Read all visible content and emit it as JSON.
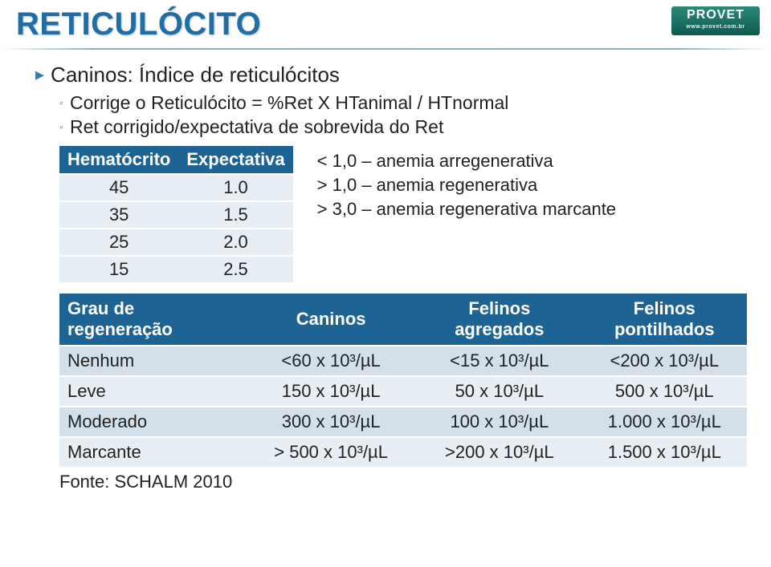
{
  "logo": {
    "name": "PROVET",
    "tagline": "www.provet.com.br"
  },
  "title": "RETICULÓCITO",
  "bullets": {
    "main": "Caninos: Índice de reticulócitos",
    "sub1": "Corrige o Reticulócito = %Ret X HTanimal / HTnormal",
    "sub2": "Ret corrigido/expectativa de sobrevida do Ret"
  },
  "hematocrito": {
    "headers": [
      "Hematócrito",
      "Expectativa"
    ],
    "rows": [
      [
        "45",
        "1.0"
      ],
      [
        "35",
        "1.5"
      ],
      [
        "25",
        "2.0"
      ],
      [
        "15",
        "2.5"
      ]
    ],
    "colors": {
      "header_bg": "#1d6393",
      "header_fg": "#ffffff",
      "row_bg": "#e8eff4"
    }
  },
  "notes": {
    "line1": "< 1,0 – anemia arregenerativa",
    "line2": "> 1,0 – anemia regenerativa",
    "line3": "> 3,0 – anemia regenerativa marcante"
  },
  "grau": {
    "headers": [
      "Grau de regeneração",
      "Caninos",
      "Felinos agregados",
      "Felinos pontilhados"
    ],
    "col_widths": [
      "27%",
      "25%",
      "24%",
      "24%"
    ],
    "rows": [
      [
        "Nenhum",
        "<60 x 10³/µL",
        "<15 x 10³/µL",
        "<200 x 10³/µL"
      ],
      [
        "Leve",
        "150 x 10³/µL",
        "50 x 10³/µL",
        "500 x 10³/µL"
      ],
      [
        "Moderado",
        "300 x 10³/µL",
        "100 x 10³/µL",
        "1.000 x 10³/µL"
      ],
      [
        "Marcante",
        "> 500 x 10³/µL",
        ">200 x 10³/µL",
        "1.500 x 10³/µL"
      ]
    ],
    "colors": {
      "header_bg": "#1d6393",
      "band_a": "#d3e0ea",
      "band_b": "#e8eff4"
    }
  },
  "source": "Fonte: SCHALM 2010"
}
